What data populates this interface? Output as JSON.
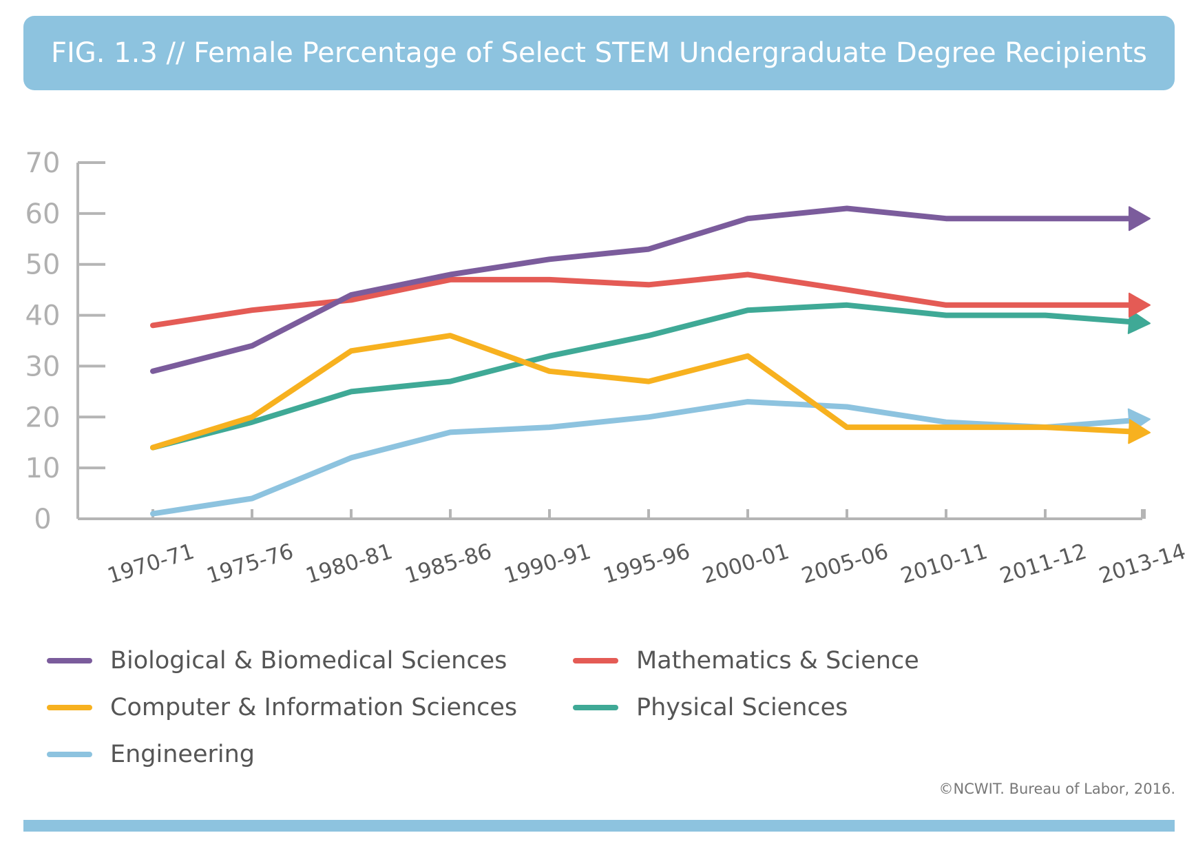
{
  "header": {
    "title": "FIG. 1.3  //  Female Percentage of Select STEM Undergraduate Degree Recipients"
  },
  "footer": {
    "source": "©NCWIT. Bureau of Labor, 2016."
  },
  "chart_data": {
    "type": "line",
    "title": "FIG. 1.3  //  Female Percentage of Select STEM Undergraduate Degree Recipients",
    "xlabel": "",
    "ylabel": "",
    "ylim": [
      0,
      70
    ],
    "yticks": [
      0,
      10,
      20,
      30,
      40,
      50,
      60,
      70
    ],
    "grid": false,
    "legend_position": "bottom",
    "categories": [
      "1970-71",
      "1975-76",
      "1980-81",
      "1985-86",
      "1990-91",
      "1995-96",
      "2000-01",
      "2005-06",
      "2010-11",
      "2011-12",
      "2013-14"
    ],
    "series": [
      {
        "name": "Biological & Biomedical Sciences",
        "color": "#7b5c9c",
        "values": [
          29,
          34,
          44,
          48,
          51,
          53,
          59,
          61,
          59,
          59,
          59
        ]
      },
      {
        "name": "Mathematics & Science",
        "color": "#e45b55",
        "values": [
          38,
          41,
          43,
          47,
          47,
          46,
          48,
          45,
          42,
          42,
          42
        ]
      },
      {
        "name": "Computer & Information Sciences",
        "color": "#f7b11f",
        "values": [
          14,
          20,
          33,
          36,
          29,
          27,
          32,
          18,
          18,
          18,
          17
        ]
      },
      {
        "name": "Physical Sciences",
        "color": "#3fa996",
        "values": [
          14,
          19,
          25,
          27,
          32,
          36,
          41,
          42,
          40,
          40,
          38.5
        ]
      },
      {
        "name": "Engineering",
        "color": "#8dc3df",
        "values": [
          1,
          4,
          12,
          17,
          18,
          20,
          23,
          22,
          19,
          18,
          19.5
        ]
      }
    ]
  }
}
